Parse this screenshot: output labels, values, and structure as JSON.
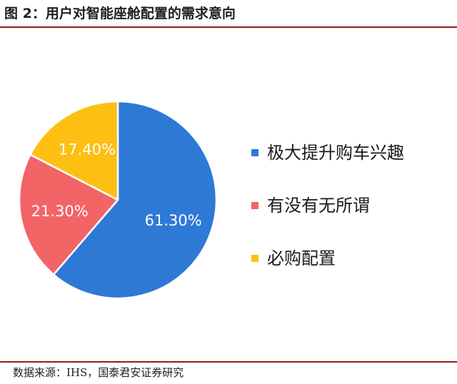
{
  "header": {
    "title": "图 2：用户对智能座舱配置的需求意向"
  },
  "footer": {
    "source": "数据来源：IHS，国泰君安证券研究"
  },
  "chart_data": {
    "type": "pie",
    "title": "",
    "labels": [
      "极大提升购车兴趣",
      "有没有无所谓",
      "必购配置"
    ],
    "values": [
      61.3,
      21.3,
      17.4
    ],
    "value_labels": [
      "61.30%",
      "21.30%",
      "17.40%"
    ],
    "colors": [
      "#2e79d6",
      "#f26466",
      "#fdbf12"
    ],
    "legend_position": "right"
  }
}
